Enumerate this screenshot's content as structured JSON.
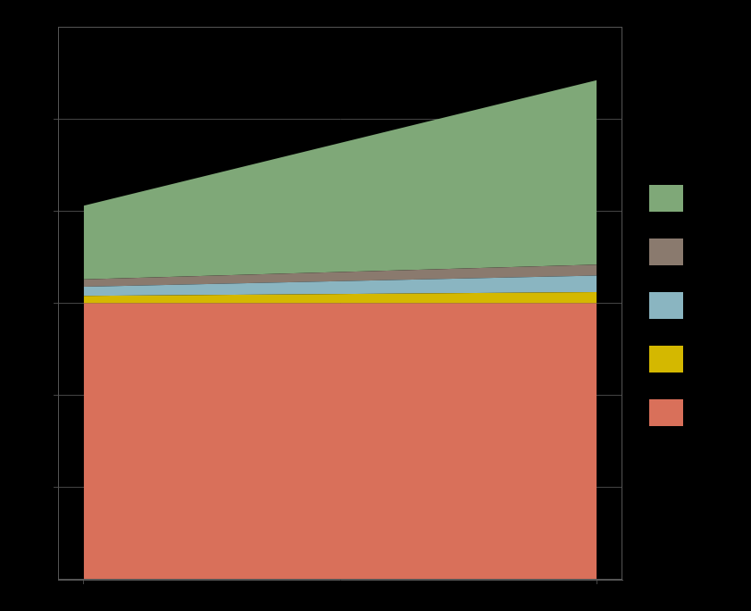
{
  "chart_data": {
    "type": "area",
    "stacked": true,
    "x": [
      0,
      1
    ],
    "series": [
      {
        "color": "#d9705a",
        "values": [
          300,
          300
        ]
      },
      {
        "color": "#d4b800",
        "values": [
          8,
          12
        ]
      },
      {
        "color": "#8ab5c1",
        "values": [
          10,
          18
        ]
      },
      {
        "color": "#8a7a6e",
        "values": [
          8,
          12
        ]
      },
      {
        "color": "#7fa878",
        "values": [
          80,
          200
        ]
      }
    ],
    "xlim": [
      -0.05,
      1.05
    ],
    "xticks": [
      0,
      1
    ],
    "ylim": [
      0,
      600
    ],
    "yticks": [
      100,
      200,
      300,
      400,
      500
    ],
    "grid": "y",
    "legend": "right",
    "tick_labels": false
  }
}
